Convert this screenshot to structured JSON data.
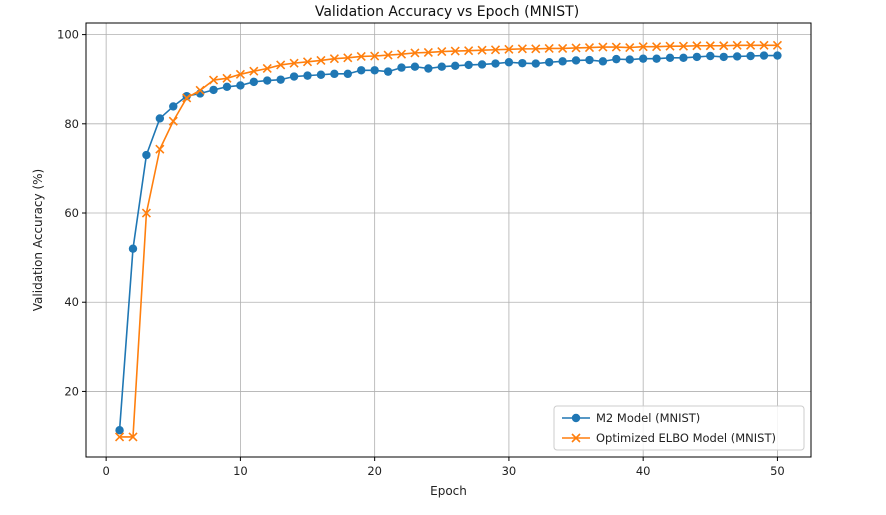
{
  "chart_data": {
    "type": "line",
    "title": "Validation Accuracy vs Epoch (MNIST)",
    "xlabel": "Epoch",
    "ylabel": "Validation Accuracy (%)",
    "xlim": [
      -1.5,
      52.5
    ],
    "ylim": [
      5.3,
      102.6
    ],
    "xticks": [
      0,
      10,
      20,
      30,
      40,
      50
    ],
    "yticks": [
      20,
      40,
      60,
      80,
      100
    ],
    "grid": true,
    "legend_position": "lower-right",
    "x": [
      1,
      2,
      3,
      4,
      5,
      6,
      7,
      8,
      9,
      10,
      11,
      12,
      13,
      14,
      15,
      16,
      17,
      18,
      19,
      20,
      21,
      22,
      23,
      24,
      25,
      26,
      27,
      28,
      29,
      30,
      31,
      32,
      33,
      34,
      35,
      36,
      37,
      38,
      39,
      40,
      41,
      42,
      43,
      44,
      45,
      46,
      47,
      48,
      49,
      50
    ],
    "series": [
      {
        "name": "M2 Model (MNIST)",
        "color": "#1f77b4",
        "marker": "circle",
        "values": [
          11.3,
          52.0,
          73.0,
          81.2,
          83.9,
          86.2,
          86.8,
          87.6,
          88.3,
          88.6,
          89.4,
          89.7,
          89.9,
          90.6,
          90.8,
          91.0,
          91.2,
          91.2,
          92.0,
          92.0,
          91.7,
          92.6,
          92.8,
          92.4,
          92.8,
          93.0,
          93.2,
          93.3,
          93.5,
          93.8,
          93.6,
          93.5,
          93.8,
          94.0,
          94.2,
          94.3,
          94.0,
          94.5,
          94.4,
          94.6,
          94.6,
          94.8,
          94.8,
          95.0,
          95.2,
          95.0,
          95.1,
          95.2,
          95.3,
          95.3
        ]
      },
      {
        "name": "Optimized ELBO Model (MNIST)",
        "color": "#ff7f0e",
        "marker": "x",
        "values": [
          9.8,
          9.8,
          60.0,
          74.3,
          80.6,
          85.8,
          87.5,
          89.8,
          90.2,
          91.1,
          91.8,
          92.4,
          93.2,
          93.6,
          93.9,
          94.2,
          94.6,
          94.8,
          95.1,
          95.2,
          95.4,
          95.6,
          95.9,
          96.0,
          96.2,
          96.3,
          96.4,
          96.5,
          96.6,
          96.7,
          96.8,
          96.8,
          96.9,
          96.9,
          97.0,
          97.1,
          97.2,
          97.2,
          97.1,
          97.3,
          97.3,
          97.4,
          97.4,
          97.5,
          97.5,
          97.5,
          97.6,
          97.6,
          97.6,
          97.6
        ]
      }
    ]
  }
}
